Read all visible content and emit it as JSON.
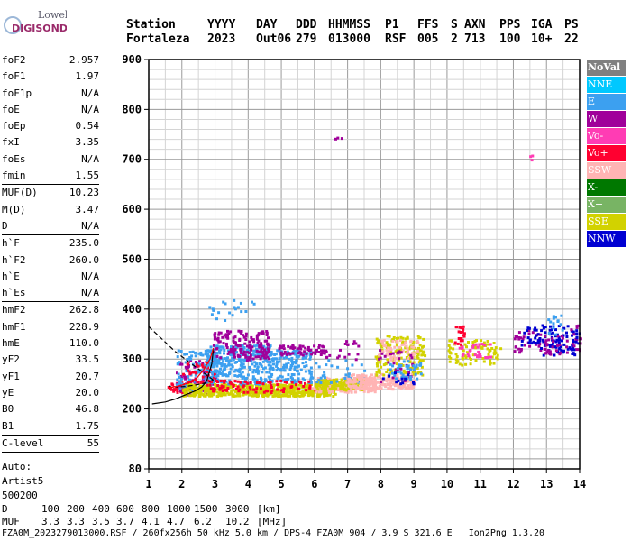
{
  "logo": {
    "line1": "Lowell",
    "line2": "DIGISONDE"
  },
  "header": {
    "labels": [
      "Station",
      "YYYY",
      "DAY",
      "DDD",
      "HHMMSS",
      "P1",
      "FFS",
      "S",
      "AXN",
      "PPS",
      "IGA",
      "PS"
    ],
    "values": [
      "Fortaleza",
      "2023",
      "Out06",
      "279",
      "013000",
      "RSF",
      "005",
      "2",
      "713",
      "100",
      "10+",
      "22"
    ]
  },
  "params": [
    {
      "group": [
        {
          "name": "foF2",
          "value": "2.957"
        },
        {
          "name": "foF1",
          "value": "1.97"
        },
        {
          "name": "foF1p",
          "value": "N/A"
        },
        {
          "name": "foE",
          "value": "N/A"
        },
        {
          "name": "foEp",
          "value": "0.54"
        },
        {
          "name": "fxI",
          "value": "3.35"
        },
        {
          "name": "foEs",
          "value": "N/A"
        },
        {
          "name": "fmin",
          "value": "1.55"
        }
      ]
    },
    {
      "group": [
        {
          "name": "MUF(D)",
          "value": "10.23"
        },
        {
          "name": "M(D)",
          "value": "3.47"
        },
        {
          "name": "D",
          "value": "N/A"
        }
      ]
    },
    {
      "group": [
        {
          "name": "h`F",
          "value": "235.0"
        },
        {
          "name": "h`F2",
          "value": "260.0"
        },
        {
          "name": "h`E",
          "value": "N/A"
        },
        {
          "name": "h`Es",
          "value": "N/A"
        }
      ]
    },
    {
      "group": [
        {
          "name": "hmF2",
          "value": "262.8"
        },
        {
          "name": "hmF1",
          "value": "228.9"
        },
        {
          "name": "hmE",
          "value": "110.0"
        },
        {
          "name": "yF2",
          "value": "33.5"
        },
        {
          "name": "yF1",
          "value": "20.7"
        },
        {
          "name": "yE",
          "value": "20.0"
        },
        {
          "name": "B0",
          "value": "46.8"
        },
        {
          "name": "B1",
          "value": "1.75"
        }
      ]
    },
    {
      "group": [
        {
          "name": "C-level",
          "value": "55"
        }
      ]
    }
  ],
  "auto": [
    "Auto:",
    "Artist5",
    "500200"
  ],
  "legend": [
    {
      "label": "NoVal",
      "color": "#808080"
    },
    {
      "label": "NNE",
      "color": "#00c8ff"
    },
    {
      "label": "E",
      "color": "#3ca0f0"
    },
    {
      "label": "W",
      "color": "#a0009a"
    },
    {
      "label": "Vo-",
      "color": "#ff3cb4"
    },
    {
      "label": "Vo+",
      "color": "#ff0030"
    },
    {
      "label": "SSW",
      "color": "#ffb4b4"
    },
    {
      "label": "X-",
      "color": "#007800"
    },
    {
      "label": "X+",
      "color": "#78b464"
    },
    {
      "label": "SSE",
      "color": "#d2d200"
    },
    {
      "label": "NNW",
      "color": "#0000d2"
    }
  ],
  "bottom": {
    "d_label": "D",
    "d_values": [
      "100",
      "200",
      "400",
      "600",
      "800",
      "1000",
      "1500",
      "3000",
      "[km]"
    ],
    "muf_label": "MUF",
    "muf_values": [
      "3.3",
      "3.3",
      "3.5",
      "3.7",
      "4.1",
      "4.7",
      "6.2",
      "10.2",
      "[MHz]"
    ]
  },
  "footer": "FZA0M_2023279013000.RSF / 260fx256h 50 kHz 5.0 km / DPS-4 FZA0M 904 / 3.9 S 321.6 E   Ion2Png 1.3.20",
  "chart_data": {
    "type": "scatter",
    "x_ticks": [
      1,
      2,
      3,
      4,
      5,
      6,
      7,
      8,
      9,
      10,
      11,
      12,
      13,
      14
    ],
    "y_ticks": [
      80,
      200,
      300,
      400,
      500,
      600,
      700,
      800,
      900
    ],
    "xlim": [
      1,
      14
    ],
    "ylim": [
      80,
      900
    ],
    "grid": true,
    "clusters": [
      {
        "x": [
          1.55,
          2.2
        ],
        "y": [
          235,
          255
        ],
        "color": "#ff0030",
        "n": 40
      },
      {
        "x": [
          1.8,
          3.0
        ],
        "y": [
          230,
          300
        ],
        "color": "#a0009a",
        "n": 60
      },
      {
        "x": [
          1.8,
          3.2
        ],
        "y": [
          240,
          320
        ],
        "color": "#3ca0f0",
        "n": 110
      },
      {
        "x": [
          2.0,
          3.0
        ],
        "y": [
          255,
          300
        ],
        "color": "#ff0030",
        "n": 40
      },
      {
        "x": [
          2.0,
          6.6
        ],
        "y": [
          228,
          252
        ],
        "color": "#d2d200",
        "n": 650
      },
      {
        "x": [
          2.7,
          4.7
        ],
        "y": [
          250,
          330
        ],
        "color": "#3ca0f0",
        "n": 300
      },
      {
        "x": [
          2.9,
          4.6
        ],
        "y": [
          300,
          360
        ],
        "color": "#a0009a",
        "n": 150
      },
      {
        "x": [
          4.6,
          5.9
        ],
        "y": [
          255,
          320
        ],
        "color": "#3ca0f0",
        "n": 140
      },
      {
        "x": [
          4.9,
          6.3
        ],
        "y": [
          310,
          330
        ],
        "color": "#a0009a",
        "n": 60
      },
      {
        "x": [
          2.6,
          6.0
        ],
        "y": [
          235,
          260
        ],
        "color": "#ff0030",
        "n": 90
      },
      {
        "x": [
          2.8,
          4.2
        ],
        "y": [
          378,
          420
        ],
        "color": "#3ca0f0",
        "n": 20
      },
      {
        "x": [
          5.9,
          7.8
        ],
        "y": [
          235,
          265
        ],
        "color": "#ffb4b4",
        "n": 150
      },
      {
        "x": [
          6.0,
          7.5
        ],
        "y": [
          240,
          262
        ],
        "color": "#d2d200",
        "n": 120
      },
      {
        "x": [
          6.0,
          7.5
        ],
        "y": [
          255,
          300
        ],
        "color": "#3ca0f0",
        "n": 30
      },
      {
        "x": [
          6.3,
          7.3
        ],
        "y": [
          300,
          340
        ],
        "color": "#a0009a",
        "n": 20
      },
      {
        "x": [
          7.0,
          9.0
        ],
        "y": [
          242,
          272
        ],
        "color": "#ffb4b4",
        "n": 220
      },
      {
        "x": [
          7.8,
          9.3
        ],
        "y": [
          270,
          350
        ],
        "color": "#d2d200",
        "n": 160
      },
      {
        "x": [
          7.9,
          9.1
        ],
        "y": [
          300,
          340
        ],
        "color": "#ffb4b4",
        "n": 60
      },
      {
        "x": [
          7.9,
          9.0
        ],
        "y": [
          255,
          320
        ],
        "color": "#a0009a",
        "n": 30
      },
      {
        "x": [
          8.2,
          9.2
        ],
        "y": [
          262,
          300
        ],
        "color": "#3ca0f0",
        "n": 40
      },
      {
        "x": [
          8.0,
          9.0
        ],
        "y": [
          250,
          275
        ],
        "color": "#0000d2",
        "n": 12
      },
      {
        "x": [
          10.0,
          11.6
        ],
        "y": [
          290,
          340
        ],
        "color": "#d2d200",
        "n": 80
      },
      {
        "x": [
          10.2,
          11.4
        ],
        "y": [
          305,
          335
        ],
        "color": "#ff3cb4",
        "n": 30
      },
      {
        "x": [
          10.2,
          10.5
        ],
        "y": [
          330,
          370
        ],
        "color": "#ff0030",
        "n": 20
      },
      {
        "x": [
          12.0,
          12.8
        ],
        "y": [
          315,
          360
        ],
        "color": "#a0009a",
        "n": 30
      },
      {
        "x": [
          12.2,
          12.8
        ],
        "y": [
          330,
          365
        ],
        "color": "#0000d2",
        "n": 25
      },
      {
        "x": [
          12.8,
          13.8
        ],
        "y": [
          310,
          370
        ],
        "color": "#0000d2",
        "n": 70
      },
      {
        "x": [
          12.9,
          13.6
        ],
        "y": [
          310,
          350
        ],
        "color": "#a0009a",
        "n": 30
      },
      {
        "x": [
          13.0,
          13.5
        ],
        "y": [
          350,
          390
        ],
        "color": "#3ca0f0",
        "n": 15
      },
      {
        "x": [
          13.7,
          14.0
        ],
        "y": [
          300,
          390
        ],
        "color": "#a0009a",
        "n": 15
      },
      {
        "x": [
          13.7,
          14.0
        ],
        "y": [
          310,
          360
        ],
        "color": "#0000d2",
        "n": 12
      },
      {
        "x": [
          6.6,
          6.8
        ],
        "y": [
          740,
          750
        ],
        "color": "#a0009a",
        "n": 3
      },
      {
        "x": [
          12.45,
          12.55
        ],
        "y": [
          700,
          715
        ],
        "color": "#ff3cb4",
        "n": 3
      }
    ],
    "traces": [
      {
        "name": "trace-solid",
        "style": "solid",
        "color": "#000000",
        "x": [
          1.1,
          1.5,
          1.8,
          2.1,
          2.4,
          2.6,
          2.75,
          2.9,
          2.95
        ],
        "y": [
          210,
          214,
          220,
          228,
          236,
          244,
          256,
          290,
          320
        ]
      },
      {
        "name": "trace-dashed-upper",
        "style": "dashed",
        "color": "#000000",
        "x": [
          1.0,
          1.4,
          1.8,
          2.2,
          2.6,
          2.95
        ],
        "y": [
          365,
          340,
          315,
          295,
          275,
          258
        ]
      },
      {
        "name": "trace-dashed-lower",
        "style": "dashed",
        "color": "#000000",
        "x": [
          2.95,
          2.7,
          2.4,
          2.1,
          1.85,
          1.6
        ],
        "y": [
          258,
          252,
          248,
          245,
          244,
          246
        ]
      },
      {
        "name": "trace-red",
        "style": "solid",
        "color": "#ff0000",
        "x": [
          1.6,
          1.9,
          2.2,
          2.45,
          2.65,
          2.85,
          2.95
        ],
        "y": [
          242,
          246,
          252,
          262,
          278,
          300,
          322
        ]
      }
    ]
  }
}
